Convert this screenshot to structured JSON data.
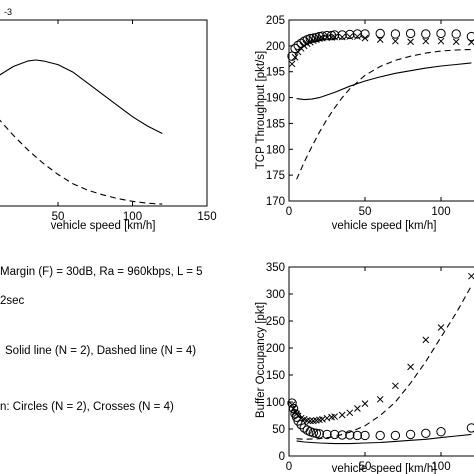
{
  "chart_data": [
    {
      "type": "line",
      "panel": "top-left",
      "exponent_label": "-3",
      "xlabel": "vehicle speed [km/h]",
      "ylabel": "",
      "xlim": [
        0,
        150
      ],
      "xticks": [
        50,
        100,
        150
      ],
      "ylim": [
        0,
        1
      ],
      "grid": false,
      "series": [
        {
          "style": "solid",
          "x": [
            0,
            5,
            10,
            20,
            30,
            35,
            40,
            50,
            60,
            70,
            80,
            90,
            100,
            110,
            120
          ],
          "y": [
            0.62,
            0.66,
            0.7,
            0.75,
            0.78,
            0.785,
            0.78,
            0.76,
            0.72,
            0.66,
            0.6,
            0.54,
            0.48,
            0.43,
            0.39
          ]
        },
        {
          "style": "dashed",
          "x": [
            0,
            5,
            10,
            20,
            30,
            40,
            50,
            60,
            70,
            80,
            90,
            100,
            110,
            120
          ],
          "y": [
            0.55,
            0.52,
            0.47,
            0.38,
            0.3,
            0.23,
            0.17,
            0.12,
            0.085,
            0.06,
            0.04,
            0.025,
            0.015,
            0.01
          ]
        }
      ]
    },
    {
      "type": "line",
      "panel": "top-right",
      "xlabel": "vehicle speed [km/h]",
      "ylabel": "TCP Throughput [pkt/s]",
      "xlim": [
        0,
        125
      ],
      "xticks": [
        0,
        50,
        100
      ],
      "ylim": [
        170,
        205
      ],
      "yticks": [
        170,
        175,
        180,
        185,
        190,
        195,
        200,
        205
      ],
      "grid": false,
      "series": [
        {
          "style": "solid",
          "x": [
            5,
            10,
            15,
            20,
            25,
            30,
            40,
            50,
            60,
            70,
            80,
            90,
            100,
            110,
            120
          ],
          "y": [
            189.8,
            189.6,
            189.7,
            190.0,
            190.5,
            191.0,
            192.2,
            193.2,
            194.0,
            194.7,
            195.2,
            195.7,
            196.1,
            196.4,
            196.7
          ]
        },
        {
          "style": "dashed",
          "x": [
            5,
            10,
            15,
            20,
            25,
            30,
            35,
            40,
            50,
            60,
            70,
            80,
            90,
            100,
            110,
            120
          ],
          "y": [
            174.2,
            177.5,
            180.5,
            183.3,
            185.8,
            188.0,
            190.0,
            191.7,
            194.3,
            196.0,
            197.2,
            198.0,
            198.6,
            199.0,
            199.2,
            199.3
          ]
        },
        {
          "style": "circles",
          "x": [
            2,
            4,
            6,
            8,
            10,
            12,
            14,
            16,
            18,
            20,
            22,
            25,
            28,
            30,
            35,
            40,
            45,
            50,
            60,
            70,
            80,
            90,
            100,
            110,
            120
          ],
          "y": [
            198.0,
            199.5,
            200.1,
            200.5,
            200.9,
            201.2,
            201.4,
            201.5,
            201.6,
            201.8,
            201.9,
            202.0,
            202.0,
            202.1,
            202.1,
            202.2,
            202.3,
            202.3,
            202.4,
            202.3,
            202.4,
            202.3,
            202.4,
            202.3,
            201.8
          ]
        },
        {
          "style": "crosses",
          "x": [
            2,
            4,
            6,
            8,
            10,
            12,
            14,
            16,
            18,
            20,
            22,
            25,
            28,
            30,
            35,
            40,
            45,
            50,
            60,
            70,
            80,
            90,
            100,
            110,
            120
          ],
          "y": [
            196.5,
            197.8,
            198.8,
            199.5,
            200.0,
            200.4,
            200.7,
            201.0,
            201.2,
            201.4,
            201.5,
            201.6,
            201.6,
            201.7,
            201.7,
            201.8,
            201.8,
            201.5,
            201.2,
            200.9,
            200.8,
            200.9,
            200.9,
            200.8,
            200.7
          ]
        }
      ]
    },
    {
      "type": "line",
      "panel": "bottom-right",
      "xlabel": "vehicle speed [km/h]",
      "ylabel": "Buffer Occupancy [pkt]",
      "xlim": [
        0,
        125
      ],
      "xticks": [
        0,
        50,
        100
      ],
      "ylim": [
        0,
        350
      ],
      "yticks": [
        0,
        50,
        100,
        150,
        200,
        250,
        300,
        350
      ],
      "grid": false,
      "series": [
        {
          "style": "solid",
          "x": [
            5,
            10,
            20,
            30,
            40,
            50,
            60,
            70,
            80,
            90,
            100,
            110,
            120
          ],
          "y": [
            28,
            26,
            24,
            23,
            23,
            24,
            25,
            27,
            29,
            31,
            34,
            37,
            40
          ]
        },
        {
          "style": "dashed",
          "x": [
            5,
            10,
            20,
            30,
            40,
            50,
            60,
            70,
            80,
            90,
            100,
            110,
            120
          ],
          "y": [
            32,
            31,
            32,
            36,
            44,
            56,
            75,
            100,
            135,
            175,
            220,
            265,
            315
          ]
        },
        {
          "style": "circles",
          "x": [
            2,
            3,
            4,
            5,
            6,
            8,
            10,
            12,
            14,
            16,
            18,
            20,
            25,
            30,
            35,
            40,
            45,
            50,
            60,
            70,
            80,
            90,
            100,
            120
          ],
          "y": [
            98,
            88,
            78,
            72,
            65,
            58,
            52,
            48,
            45,
            43,
            42,
            41,
            40,
            40,
            39,
            39,
            38,
            38,
            38,
            38,
            40,
            42,
            45,
            52
          ]
        },
        {
          "style": "crosses",
          "x": [
            2,
            3,
            4,
            5,
            6,
            8,
            10,
            12,
            14,
            16,
            18,
            20,
            22,
            25,
            28,
            30,
            35,
            40,
            45,
            50,
            60,
            70,
            80,
            90,
            100,
            120
          ],
          "y": [
            95,
            88,
            82,
            78,
            74,
            70,
            68,
            66,
            65,
            65,
            66,
            67,
            68,
            70,
            72,
            73,
            76,
            80,
            88,
            97,
            105,
            130,
            165,
            215,
            238,
            333
          ]
        }
      ]
    }
  ],
  "legend_text": {
    "line1": "Margin (F) = 30dB, Ra = 960kbps, L = 5",
    "line2": "2sec",
    "line3": "Solid line (N = 2), Dashed line (N = 4)",
    "line4": "n: Circles (N = 2), Crosses (N = 4)"
  }
}
